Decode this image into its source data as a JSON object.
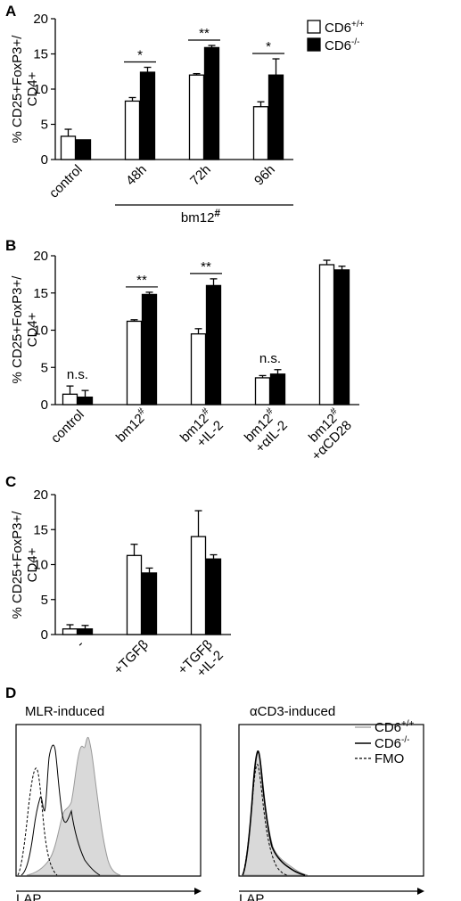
{
  "colors": {
    "wt": "#ffffff",
    "ko": "#000000",
    "stroke": "#000000",
    "fill_gray": "#d9d9d9"
  },
  "legend": {
    "wt": {
      "base": "CD6",
      "sup": "+/+"
    },
    "ko": {
      "base": "CD6",
      "sup": "-/-"
    }
  },
  "chart_data": [
    {
      "panel": "A",
      "type": "bar",
      "ylabel_lines": [
        "% CD25+FoxP3+/",
        "CD4+"
      ],
      "ylim": [
        0,
        20
      ],
      "yticks": [
        0,
        5,
        10,
        15,
        20
      ],
      "categories": [
        "control",
        "48h",
        "72h",
        "96h"
      ],
      "series": [
        {
          "key": "wt",
          "values": [
            3.3,
            8.3,
            12.0,
            7.5
          ],
          "errors": [
            1.0,
            0.5,
            0.2,
            0.7
          ]
        },
        {
          "key": "ko",
          "values": [
            2.8,
            12.4,
            15.9,
            12.0
          ],
          "errors": [
            0,
            0.7,
            0.3,
            2.3
          ]
        }
      ],
      "significance": [
        {
          "category": 1,
          "label": "*"
        },
        {
          "category": 2,
          "label": "**"
        },
        {
          "category": 3,
          "label": "*"
        }
      ],
      "group_label": {
        "text": "bm12",
        "sup": "#",
        "from": 1,
        "to": 3
      }
    },
    {
      "panel": "B",
      "type": "bar",
      "ylabel_lines": [
        "% CD25+FoxP3+/",
        "CD4+"
      ],
      "ylim": [
        0,
        20
      ],
      "yticks": [
        0,
        5,
        10,
        15,
        20
      ],
      "categories": [
        {
          "line1": "control",
          "sup": "",
          "line2": ""
        },
        {
          "line1": "bm12",
          "sup": "#",
          "line2": ""
        },
        {
          "line1": "bm12",
          "sup": "#",
          "line2": "+IL-2"
        },
        {
          "line1": "bm12",
          "sup": "#",
          "line2": "+αIL-2"
        },
        {
          "line1": "bm12",
          "sup": "#",
          "line2": "+αCD28"
        }
      ],
      "series": [
        {
          "key": "wt",
          "values": [
            1.4,
            11.2,
            9.5,
            3.6,
            18.8
          ],
          "errors": [
            1.1,
            0.2,
            0.7,
            0.3,
            0.6
          ]
        },
        {
          "key": "ko",
          "values": [
            1.0,
            14.8,
            16.0,
            4.1,
            18.1
          ],
          "errors": [
            0.9,
            0.3,
            0.9,
            0.6,
            0.5
          ]
        }
      ],
      "significance": [
        {
          "category": 0,
          "label": "n.s.",
          "type": "text"
        },
        {
          "category": 1,
          "label": "**",
          "type": "line"
        },
        {
          "category": 2,
          "label": "**",
          "type": "line"
        },
        {
          "category": 3,
          "label": "n.s.",
          "type": "text"
        }
      ]
    },
    {
      "panel": "C",
      "type": "bar",
      "ylabel_lines": [
        "% CD25+FoxP3+/",
        "CD4+"
      ],
      "ylim": [
        0,
        20
      ],
      "yticks": [
        0,
        5,
        10,
        15,
        20
      ],
      "categories": [
        {
          "line1": "-",
          "line2": ""
        },
        {
          "line1": "+TGFβ",
          "line2": ""
        },
        {
          "line1": "+TGFβ",
          "line2": "+IL-2"
        }
      ],
      "series": [
        {
          "key": "wt",
          "values": [
            0.8,
            11.3,
            14.0
          ],
          "errors": [
            0.6,
            1.6,
            3.7
          ]
        },
        {
          "key": "ko",
          "values": [
            0.8,
            8.8,
            10.8
          ],
          "errors": [
            0.5,
            0.7,
            0.6
          ]
        }
      ]
    }
  ],
  "panel_d": {
    "letter": "D",
    "histograms": [
      {
        "title": "MLR-induced",
        "xlabel": "LAP"
      },
      {
        "title": "αCD3-induced",
        "xlabel": "LAP"
      }
    ],
    "legend": [
      {
        "label_base": "CD6",
        "label_sup": "+/+",
        "style": "gray"
      },
      {
        "label_base": "CD6",
        "label_sup": "-/-",
        "style": "black"
      },
      {
        "label_base": "FMO",
        "label_sup": "",
        "style": "dashed"
      }
    ]
  }
}
